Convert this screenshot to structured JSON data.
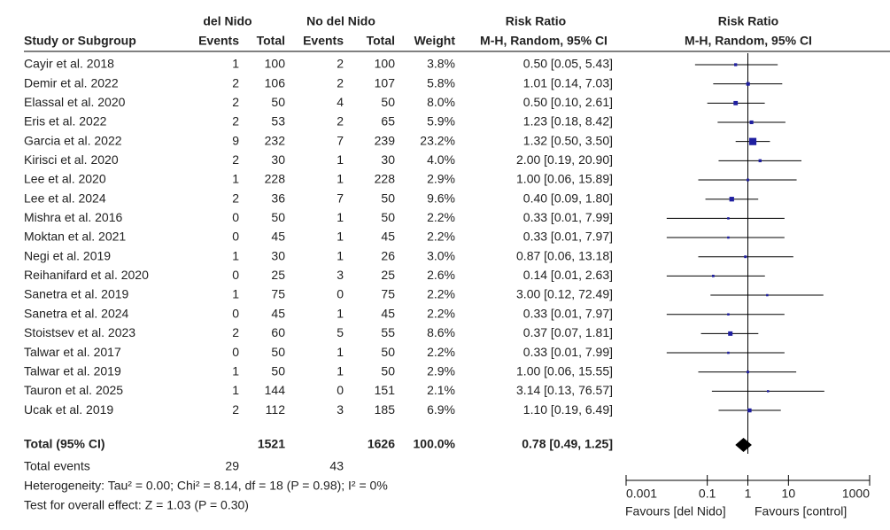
{
  "chart_data": {
    "type": "forest",
    "headers": {
      "group_a": "del Nido",
      "group_b": "No del Nido",
      "rr_title_table": "Risk Ratio",
      "rr_title_plot": "Risk Ratio",
      "study": "Study or Subgroup",
      "events_a": "Events",
      "total_a": "Total",
      "events_b": "Events",
      "total_b": "Total",
      "weight": "Weight",
      "method_table": "M-H, Random, 95% CI",
      "method_plot": "M-H, Random, 95% CI"
    },
    "studies": [
      {
        "name": "Cayir et al. 2018",
        "events_a": 1,
        "total_a": 100,
        "events_b": 2,
        "total_b": 100,
        "weight": 3.8,
        "weight_label": "3.8%",
        "rr": 0.5,
        "lo": 0.05,
        "hi": 5.43,
        "rr_label": "0.50 [0.05, 5.43]"
      },
      {
        "name": "Demir et al. 2022",
        "events_a": 2,
        "total_a": 106,
        "events_b": 2,
        "total_b": 107,
        "weight": 5.8,
        "weight_label": "5.8%",
        "rr": 1.01,
        "lo": 0.14,
        "hi": 7.03,
        "rr_label": "1.01 [0.14, 7.03]"
      },
      {
        "name": "Elassal et al. 2020",
        "events_a": 2,
        "total_a": 50,
        "events_b": 4,
        "total_b": 50,
        "weight": 8.0,
        "weight_label": "8.0%",
        "rr": 0.5,
        "lo": 0.1,
        "hi": 2.61,
        "rr_label": "0.50 [0.10, 2.61]"
      },
      {
        "name": "Eris et al. 2022",
        "events_a": 2,
        "total_a": 53,
        "events_b": 2,
        "total_b": 65,
        "weight": 5.9,
        "weight_label": "5.9%",
        "rr": 1.23,
        "lo": 0.18,
        "hi": 8.42,
        "rr_label": "1.23 [0.18, 8.42]"
      },
      {
        "name": "Garcia et al. 2022",
        "events_a": 9,
        "total_a": 232,
        "events_b": 7,
        "total_b": 239,
        "weight": 23.2,
        "weight_label": "23.2%",
        "rr": 1.32,
        "lo": 0.5,
        "hi": 3.5,
        "rr_label": "1.32 [0.50, 3.50]"
      },
      {
        "name": "Kirisci et al. 2020",
        "events_a": 2,
        "total_a": 30,
        "events_b": 1,
        "total_b": 30,
        "weight": 4.0,
        "weight_label": "4.0%",
        "rr": 2.0,
        "lo": 0.19,
        "hi": 20.9,
        "rr_label": "2.00 [0.19, 20.90]"
      },
      {
        "name": "Lee et al. 2020",
        "events_a": 1,
        "total_a": 228,
        "events_b": 1,
        "total_b": 228,
        "weight": 2.9,
        "weight_label": "2.9%",
        "rr": 1.0,
        "lo": 0.06,
        "hi": 15.89,
        "rr_label": "1.00 [0.06, 15.89]"
      },
      {
        "name": "Lee et al. 2024",
        "events_a": 2,
        "total_a": 36,
        "events_b": 7,
        "total_b": 50,
        "weight": 9.6,
        "weight_label": "9.6%",
        "rr": 0.4,
        "lo": 0.09,
        "hi": 1.8,
        "rr_label": "0.40 [0.09, 1.80]"
      },
      {
        "name": "Mishra et al. 2016",
        "events_a": 0,
        "total_a": 50,
        "events_b": 1,
        "total_b": 50,
        "weight": 2.2,
        "weight_label": "2.2%",
        "rr": 0.33,
        "lo": 0.01,
        "hi": 7.99,
        "rr_label": "0.33 [0.01, 7.99]"
      },
      {
        "name": "Moktan et al. 2021",
        "events_a": 0,
        "total_a": 45,
        "events_b": 1,
        "total_b": 45,
        "weight": 2.2,
        "weight_label": "2.2%",
        "rr": 0.33,
        "lo": 0.01,
        "hi": 7.97,
        "rr_label": "0.33 [0.01, 7.97]"
      },
      {
        "name": "Negi et al. 2019",
        "events_a": 1,
        "total_a": 30,
        "events_b": 1,
        "total_b": 26,
        "weight": 3.0,
        "weight_label": "3.0%",
        "rr": 0.87,
        "lo": 0.06,
        "hi": 13.18,
        "rr_label": "0.87 [0.06, 13.18]"
      },
      {
        "name": "Reihanifard et al. 2020",
        "events_a": 0,
        "total_a": 25,
        "events_b": 3,
        "total_b": 25,
        "weight": 2.6,
        "weight_label": "2.6%",
        "rr": 0.14,
        "lo": 0.01,
        "hi": 2.63,
        "rr_label": "0.14 [0.01, 2.63]"
      },
      {
        "name": "Sanetra et al. 2019",
        "events_a": 1,
        "total_a": 75,
        "events_b": 0,
        "total_b": 75,
        "weight": 2.2,
        "weight_label": "2.2%",
        "rr": 3.0,
        "lo": 0.12,
        "hi": 72.49,
        "rr_label": "3.00 [0.12, 72.49]"
      },
      {
        "name": "Sanetra et al. 2024",
        "events_a": 0,
        "total_a": 45,
        "events_b": 1,
        "total_b": 45,
        "weight": 2.2,
        "weight_label": "2.2%",
        "rr": 0.33,
        "lo": 0.01,
        "hi": 7.97,
        "rr_label": "0.33 [0.01, 7.97]"
      },
      {
        "name": "Stoistsev et al. 2023",
        "events_a": 2,
        "total_a": 60,
        "events_b": 5,
        "total_b": 55,
        "weight": 8.6,
        "weight_label": "8.6%",
        "rr": 0.37,
        "lo": 0.07,
        "hi": 1.81,
        "rr_label": "0.37 [0.07, 1.81]"
      },
      {
        "name": "Talwar et al. 2017",
        "events_a": 0,
        "total_a": 50,
        "events_b": 1,
        "total_b": 50,
        "weight": 2.2,
        "weight_label": "2.2%",
        "rr": 0.33,
        "lo": 0.01,
        "hi": 7.99,
        "rr_label": "0.33 [0.01, 7.99]"
      },
      {
        "name": "Talwar et al. 2019",
        "events_a": 1,
        "total_a": 50,
        "events_b": 1,
        "total_b": 50,
        "weight": 2.9,
        "weight_label": "2.9%",
        "rr": 1.0,
        "lo": 0.06,
        "hi": 15.55,
        "rr_label": "1.00 [0.06, 15.55]"
      },
      {
        "name": "Tauron et al. 2025",
        "events_a": 1,
        "total_a": 144,
        "events_b": 0,
        "total_b": 151,
        "weight": 2.1,
        "weight_label": "2.1%",
        "rr": 3.14,
        "lo": 0.13,
        "hi": 76.57,
        "rr_label": "3.14 [0.13, 76.57]"
      },
      {
        "name": "Ucak et al. 2019",
        "events_a": 2,
        "total_a": 112,
        "events_b": 3,
        "total_b": 185,
        "weight": 6.9,
        "weight_label": "6.9%",
        "rr": 1.1,
        "lo": 0.19,
        "hi": 6.49,
        "rr_label": "1.10 [0.19, 6.49]"
      }
    ],
    "total": {
      "name": "Total (95% CI)",
      "total_a": 1521,
      "total_b": 1626,
      "weight": 100.0,
      "weight_label": "100.0%",
      "rr": 0.78,
      "lo": 0.49,
      "hi": 1.25,
      "rr_label": "0.78 [0.49, 1.25]"
    },
    "total_events": {
      "label": "Total events",
      "events_a": 29,
      "events_b": 43
    },
    "heterogeneity": "Heterogeneity: Tau² = 0.00; Chi² = 8.14, df = 18 (P = 0.98); I² = 0%",
    "overall_effect": "Test for overall effect: Z = 1.03 (P = 0.30)",
    "log_scale": true,
    "xlim": [
      0.001,
      1000
    ],
    "xticks": [
      0.001,
      0.1,
      1,
      10,
      1000
    ],
    "favours_left": "Favours [del Nido]",
    "favours_right": "Favours [control]",
    "marker_color": "#1f1fa0"
  }
}
